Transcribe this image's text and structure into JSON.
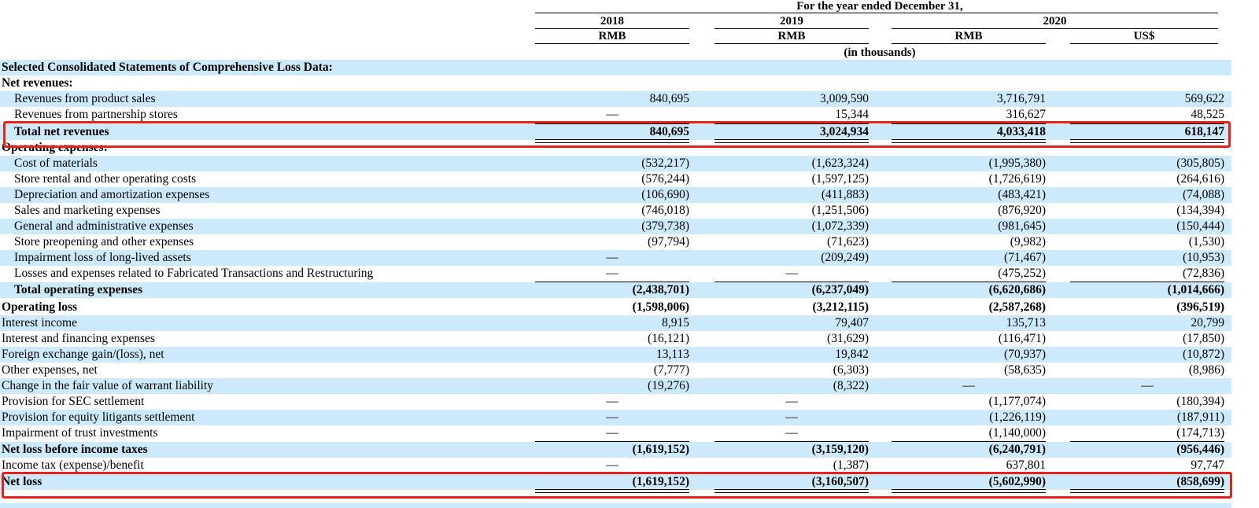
{
  "header": {
    "period_title": "For the year ended December 31,",
    "years": [
      "2018",
      "2019",
      "2020"
    ],
    "currencies": [
      "RMB",
      "RMB",
      "RMB",
      "US$"
    ],
    "units": "(in thousands)"
  },
  "rows": [
    {
      "label": "Selected Consolidated Statements of Comprehensive Loss Data:",
      "bold": true,
      "indent": false,
      "values": [
        "",
        "",
        "",
        ""
      ]
    },
    {
      "label": "Net revenues:",
      "bold": true,
      "indent": false,
      "values": [
        "",
        "",
        "",
        ""
      ]
    },
    {
      "label": "Revenues from product sales",
      "bold": false,
      "indent": true,
      "values": [
        "840,695",
        "3,009,590",
        "3,716,791",
        "569,622"
      ]
    },
    {
      "label": "Revenues from partnership stores",
      "bold": false,
      "indent": true,
      "values": [
        "—",
        "15,344",
        "316,627",
        "48,525"
      ]
    },
    {
      "label": "Total net revenues",
      "bold": true,
      "indent": true,
      "values": [
        "840,695",
        "3,024,934",
        "4,033,418",
        "618,147"
      ]
    },
    {
      "label": "Operating expenses:",
      "bold": true,
      "indent": false,
      "values": [
        "",
        "",
        "",
        ""
      ]
    },
    {
      "label": "Cost of materials",
      "bold": false,
      "indent": true,
      "values": [
        "(532,217)",
        "(1,623,324)",
        "(1,995,380)",
        "(305,805)"
      ]
    },
    {
      "label": "Store rental and other operating costs",
      "bold": false,
      "indent": true,
      "values": [
        "(576,244)",
        "(1,597,125)",
        "(1,726,619)",
        "(264,616)"
      ]
    },
    {
      "label": "Depreciation and amortization expenses",
      "bold": false,
      "indent": true,
      "values": [
        "(106,690)",
        "(411,883)",
        "(483,421)",
        "(74,088)"
      ]
    },
    {
      "label": "Sales and marketing expenses",
      "bold": false,
      "indent": true,
      "values": [
        "(746,018)",
        "(1,251,506)",
        "(876,920)",
        "(134,394)"
      ]
    },
    {
      "label": "General and administrative expenses",
      "bold": false,
      "indent": true,
      "values": [
        "(379,738)",
        "(1,072,339)",
        "(981,645)",
        "(150,444)"
      ]
    },
    {
      "label": "Store preopening and other expenses",
      "bold": false,
      "indent": true,
      "values": [
        "(97,794)",
        "(71,623)",
        "(9,982)",
        "(1,530)"
      ]
    },
    {
      "label": "Impairment loss of long-lived assets",
      "bold": false,
      "indent": true,
      "values": [
        "—",
        "(209,249)",
        "(71,467)",
        "(10,953)"
      ]
    },
    {
      "label": "Losses and expenses related to Fabricated Transactions and Restructuring",
      "bold": false,
      "indent": true,
      "values": [
        "—",
        "—",
        "(475,252)",
        "(72,836)"
      ]
    },
    {
      "label": "Total operating expenses",
      "bold": true,
      "indent": true,
      "values": [
        "(2,438,701)",
        "(6,237,049)",
        "(6,620,686)",
        "(1,014,666)"
      ]
    },
    {
      "label": "Operating loss",
      "bold": true,
      "indent": false,
      "values": [
        "(1,598,006)",
        "(3,212,115)",
        "(2,587,268)",
        "(396,519)"
      ]
    },
    {
      "label": "Interest income",
      "bold": false,
      "indent": false,
      "values": [
        "8,915",
        "79,407",
        "135,713",
        "20,799"
      ]
    },
    {
      "label": "Interest and financing expenses",
      "bold": false,
      "indent": false,
      "values": [
        "(16,121)",
        "(31,629)",
        "(116,471)",
        "(17,850)"
      ]
    },
    {
      "label": "Foreign exchange gain/(loss), net",
      "bold": false,
      "indent": false,
      "values": [
        "13,113",
        "19,842",
        "(70,937)",
        "(10,872)"
      ]
    },
    {
      "label": "Other expenses, net",
      "bold": false,
      "indent": false,
      "values": [
        "(7,777)",
        "(6,303)",
        "(58,635)",
        "(8,986)"
      ]
    },
    {
      "label": "Change in the fair value of warrant liability",
      "bold": false,
      "indent": false,
      "values": [
        "(19,276)",
        "(8,322)",
        "—",
        "—"
      ]
    },
    {
      "label": "Provision for SEC settlement",
      "bold": false,
      "indent": false,
      "values": [
        "—",
        "—",
        "(1,177,074)",
        "(180,394)"
      ]
    },
    {
      "label": "Provision for equity litigants settlement",
      "bold": false,
      "indent": false,
      "values": [
        "—",
        "—",
        "(1,226,119)",
        "(187,911)"
      ]
    },
    {
      "label": "Impairment of trust investments",
      "bold": false,
      "indent": false,
      "values": [
        "—",
        "—",
        "(1,140,000)",
        "(174,713)"
      ]
    },
    {
      "label": "Net loss before income taxes",
      "bold": true,
      "indent": false,
      "values": [
        "(1,619,152)",
        "(3,159,120)",
        "(6,240,791)",
        "(956,446)"
      ]
    },
    {
      "label": "Income tax (expense)/benefit",
      "bold": false,
      "indent": false,
      "values": [
        "—",
        "(1,387)",
        "637,801",
        "97,747"
      ]
    },
    {
      "label": "Net loss",
      "bold": true,
      "indent": false,
      "values": [
        "(1,619,152)",
        "(3,160,507)",
        "(5,602,990)",
        "(858,699)"
      ]
    }
  ],
  "highlight_color": "#e8211a",
  "row_shade_color": "#cdeafc"
}
